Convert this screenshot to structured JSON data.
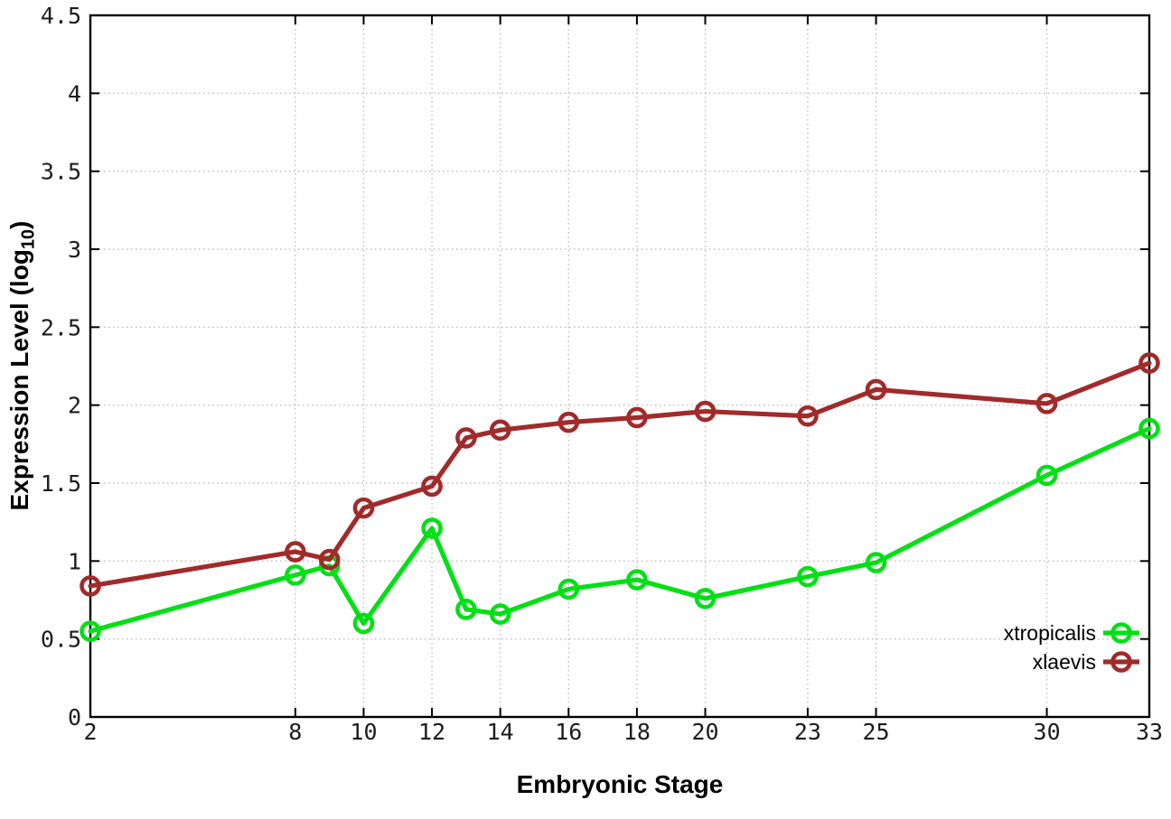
{
  "chart_data": {
    "type": "line",
    "title": "",
    "xlabel": "Embryonic Stage",
    "ylabel_parts": {
      "prefix": "Expression Level (log",
      "sub": "10",
      "suffix": ")"
    },
    "x": [
      2,
      8,
      9,
      10,
      12,
      13,
      14,
      16,
      18,
      20,
      23,
      25,
      30,
      33
    ],
    "series": [
      {
        "name": "xtropicalis",
        "color": "#00e014",
        "values": [
          0.55,
          0.91,
          0.97,
          0.6,
          1.21,
          0.69,
          0.66,
          0.82,
          0.88,
          0.76,
          0.9,
          0.99,
          1.55,
          1.85
        ]
      },
      {
        "name": "xlaevis",
        "color": "#a12a2a",
        "values": [
          0.84,
          1.06,
          1.01,
          1.34,
          1.48,
          1.79,
          1.84,
          1.89,
          1.92,
          1.96,
          1.93,
          2.1,
          2.01,
          2.27
        ]
      }
    ],
    "xlim": [
      2,
      33
    ],
    "ylim": [
      0,
      4.5
    ],
    "x_ticks": [
      2,
      8,
      10,
      12,
      14,
      16,
      18,
      20,
      23,
      25,
      30,
      33
    ],
    "y_ticks": [
      0,
      0.5,
      1,
      1.5,
      2,
      2.5,
      3,
      3.5,
      4,
      4.5
    ],
    "grid": true,
    "legend_position": "inside-bottom-right",
    "colors": {
      "grid": "#bdbdbd",
      "border": "#000000",
      "tick_text": "#1c1c1c"
    }
  }
}
